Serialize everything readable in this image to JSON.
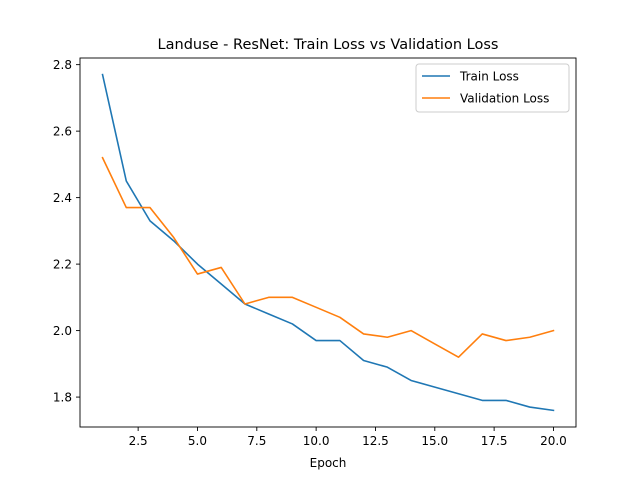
{
  "chart_data": {
    "type": "line",
    "title": "Landuse - ResNet: Train Loss vs Validation Loss",
    "xlabel": "Epoch",
    "ylabel": "",
    "x": [
      1,
      2,
      3,
      4,
      5,
      6,
      7,
      8,
      9,
      10,
      11,
      12,
      13,
      14,
      15,
      16,
      17,
      18,
      19,
      20
    ],
    "xlim": [
      0.05,
      20.95
    ],
    "ylim": [
      1.71,
      2.82
    ],
    "xticks": [
      2.5,
      5.0,
      7.5,
      10.0,
      12.5,
      15.0,
      17.5,
      20.0
    ],
    "xtick_labels": [
      "2.5",
      "5.0",
      "7.5",
      "10.0",
      "12.5",
      "15.0",
      "17.5",
      "20.0"
    ],
    "yticks": [
      1.8,
      2.0,
      2.2,
      2.4,
      2.6,
      2.8
    ],
    "ytick_labels": [
      "1.8",
      "2.0",
      "2.2",
      "2.4",
      "2.6",
      "2.8"
    ],
    "grid": false,
    "legend_position": "top-right",
    "series": [
      {
        "name": "Train Loss",
        "color": "#1f77b4",
        "values": [
          2.77,
          2.45,
          2.33,
          2.27,
          2.2,
          2.14,
          2.08,
          2.05,
          2.02,
          1.97,
          1.97,
          1.91,
          1.89,
          1.85,
          1.83,
          1.81,
          1.79,
          1.79,
          1.77,
          1.76
        ]
      },
      {
        "name": "Validation Loss",
        "color": "#ff7f0e",
        "values": [
          2.52,
          2.37,
          2.37,
          2.28,
          2.17,
          2.19,
          2.08,
          2.1,
          2.1,
          2.07,
          2.04,
          1.99,
          1.98,
          2.0,
          1.96,
          1.92,
          1.99,
          1.97,
          1.98,
          2.0
        ]
      }
    ]
  }
}
